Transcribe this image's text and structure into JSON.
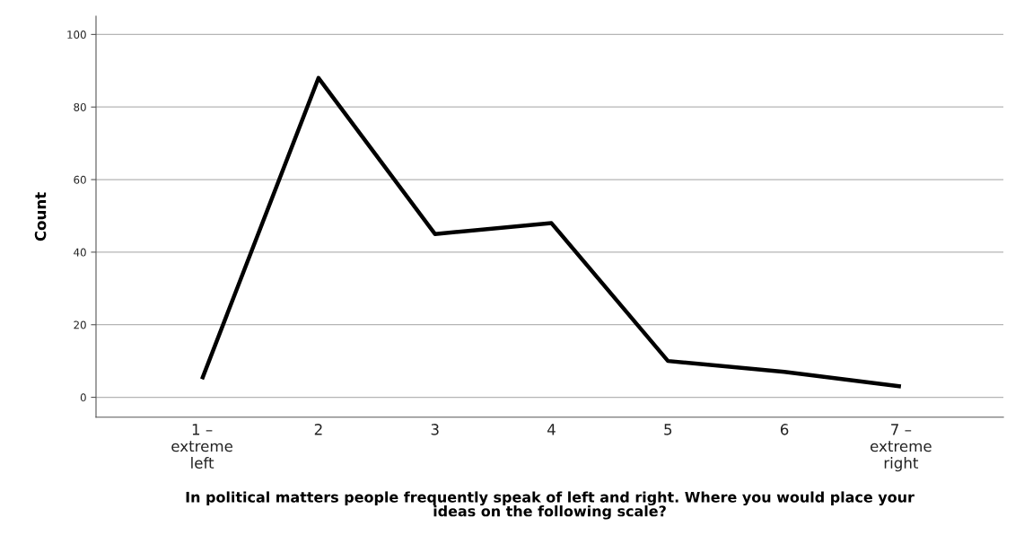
{
  "chart_data": {
    "type": "line",
    "categories": [
      "1 –\nextreme\nleft",
      "2",
      "3",
      "4",
      "5",
      "6",
      "7 –\nextreme\nright"
    ],
    "values": [
      5,
      88,
      45,
      48,
      10,
      7,
      3
    ],
    "color": "#000000",
    "xlabel": "In political matters people frequently speak of left and right. Where you would place your\nideas on the following scale?",
    "ylabel": "Count",
    "ylim": [
      -5.5,
      105
    ],
    "yticks": [
      0,
      20,
      40,
      60,
      80,
      100
    ],
    "grid": "y",
    "marker": "none",
    "line_style": "solid"
  }
}
